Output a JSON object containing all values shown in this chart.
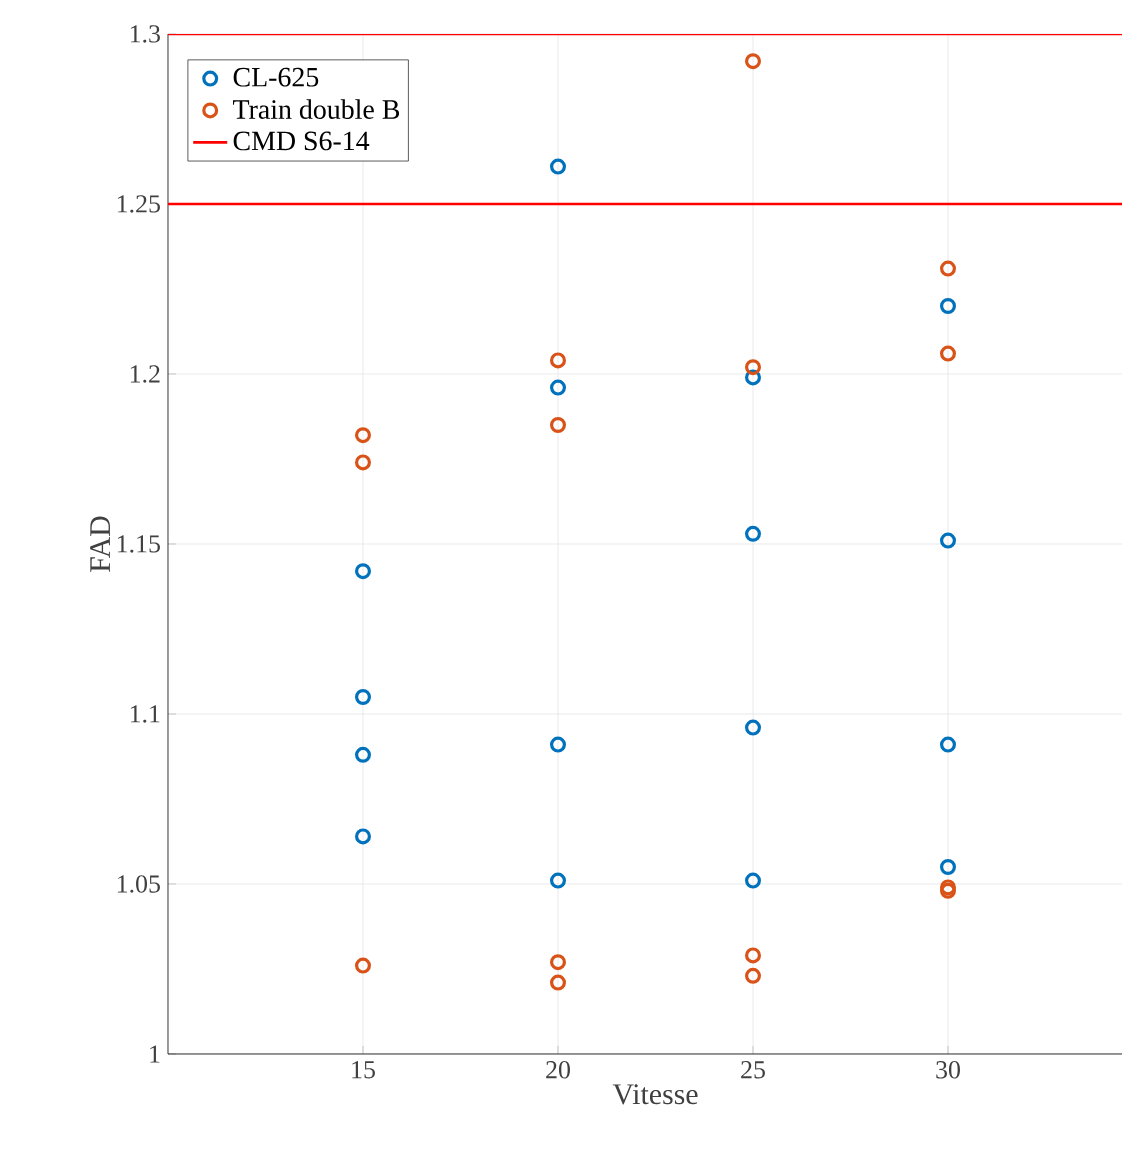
{
  "chart_data": {
    "type": "scatter",
    "xlabel": "Vitesse",
    "ylabel": "FAD",
    "xlim": [
      10,
      35
    ],
    "ylim": [
      1,
      1.3
    ],
    "xticks": [
      15,
      20,
      25,
      30
    ],
    "yticks": [
      1,
      1.05,
      1.1,
      1.15,
      1.2,
      1.25,
      1.3
    ],
    "grid": true,
    "legend": "top left",
    "marker": "circle",
    "series": [
      {
        "name": "CL-625",
        "color": "#0072bd",
        "x": [
          15,
          15,
          15,
          15,
          20,
          20,
          20,
          20,
          25,
          25,
          25,
          25,
          30,
          30,
          30,
          30
        ],
        "values": [
          1.142,
          1.105,
          1.088,
          1.064,
          1.261,
          1.196,
          1.091,
          1.051,
          1.199,
          1.153,
          1.096,
          1.051,
          1.22,
          1.151,
          1.091,
          1.055
        ]
      },
      {
        "name": "Train double B",
        "color": "#d95319",
        "x": [
          15,
          15,
          15,
          20,
          20,
          20,
          20,
          25,
          25,
          25,
          25,
          30,
          30,
          30,
          30
        ],
        "values": [
          1.182,
          1.174,
          1.026,
          1.204,
          1.185,
          1.027,
          1.021,
          1.292,
          1.202,
          1.029,
          1.023,
          1.231,
          1.206,
          1.049,
          1.048
        ]
      }
    ],
    "ref_lines": [
      {
        "axis": "y",
        "value": 1.3,
        "label": "CMD S6-14",
        "color": "#ff0000"
      },
      {
        "axis": "y",
        "value": 1.25,
        "color": "#ff0000"
      }
    ]
  }
}
